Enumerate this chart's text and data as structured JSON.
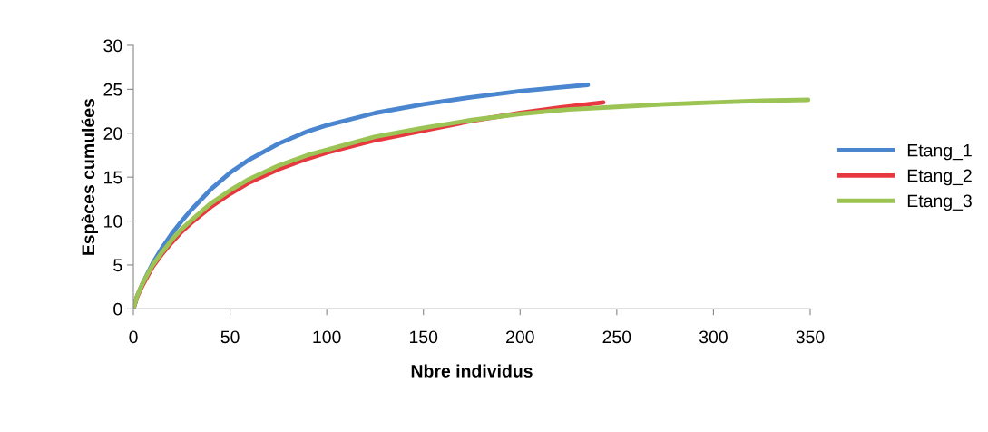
{
  "chart_data": {
    "type": "line",
    "xlabel": "Nbre individus",
    "ylabel": "Espèces cumulées",
    "xlim": [
      0,
      350
    ],
    "xticks": [
      0,
      50,
      100,
      150,
      200,
      250,
      300,
      350
    ],
    "ylim": [
      0,
      30
    ],
    "yticks": [
      0,
      5,
      10,
      15,
      20,
      25,
      30
    ],
    "grid": false,
    "legend": "right",
    "marker": "none",
    "line_style": "solid",
    "series": [
      {
        "name": "Etang_1",
        "color": "#4a86d0",
        "x": [
          0,
          2,
          5,
          10,
          15,
          20,
          25,
          30,
          40,
          50,
          60,
          75,
          90,
          100,
          125,
          150,
          175,
          200,
          220,
          235
        ],
        "values": [
          0,
          1.5,
          3,
          5.2,
          7,
          8.6,
          10,
          11.3,
          13.6,
          15.5,
          17,
          18.8,
          20.2,
          20.9,
          22.3,
          23.3,
          24.1,
          24.8,
          25.2,
          25.5
        ]
      },
      {
        "name": "Etang_2",
        "color": "#e8383f",
        "x": [
          0,
          2,
          5,
          10,
          15,
          20,
          25,
          30,
          40,
          50,
          60,
          75,
          90,
          100,
          125,
          150,
          175,
          200,
          220,
          243
        ],
        "values": [
          0,
          1.4,
          2.8,
          4.8,
          6.3,
          7.6,
          8.8,
          9.8,
          11.6,
          13.1,
          14.4,
          15.9,
          17.1,
          17.8,
          19.2,
          20.3,
          21.4,
          22.3,
          22.9,
          23.5
        ]
      },
      {
        "name": "Etang_3",
        "color": "#9bc455",
        "x": [
          0,
          2,
          5,
          10,
          15,
          20,
          25,
          30,
          40,
          50,
          60,
          75,
          90,
          100,
          125,
          150,
          175,
          200,
          225,
          250,
          275,
          300,
          325,
          349
        ],
        "values": [
          0,
          1.5,
          3,
          5,
          6.5,
          7.9,
          9.1,
          10.1,
          12,
          13.5,
          14.8,
          16.3,
          17.5,
          18.1,
          19.6,
          20.6,
          21.5,
          22.2,
          22.7,
          23.0,
          23.3,
          23.5,
          23.7,
          23.8
        ]
      }
    ]
  }
}
